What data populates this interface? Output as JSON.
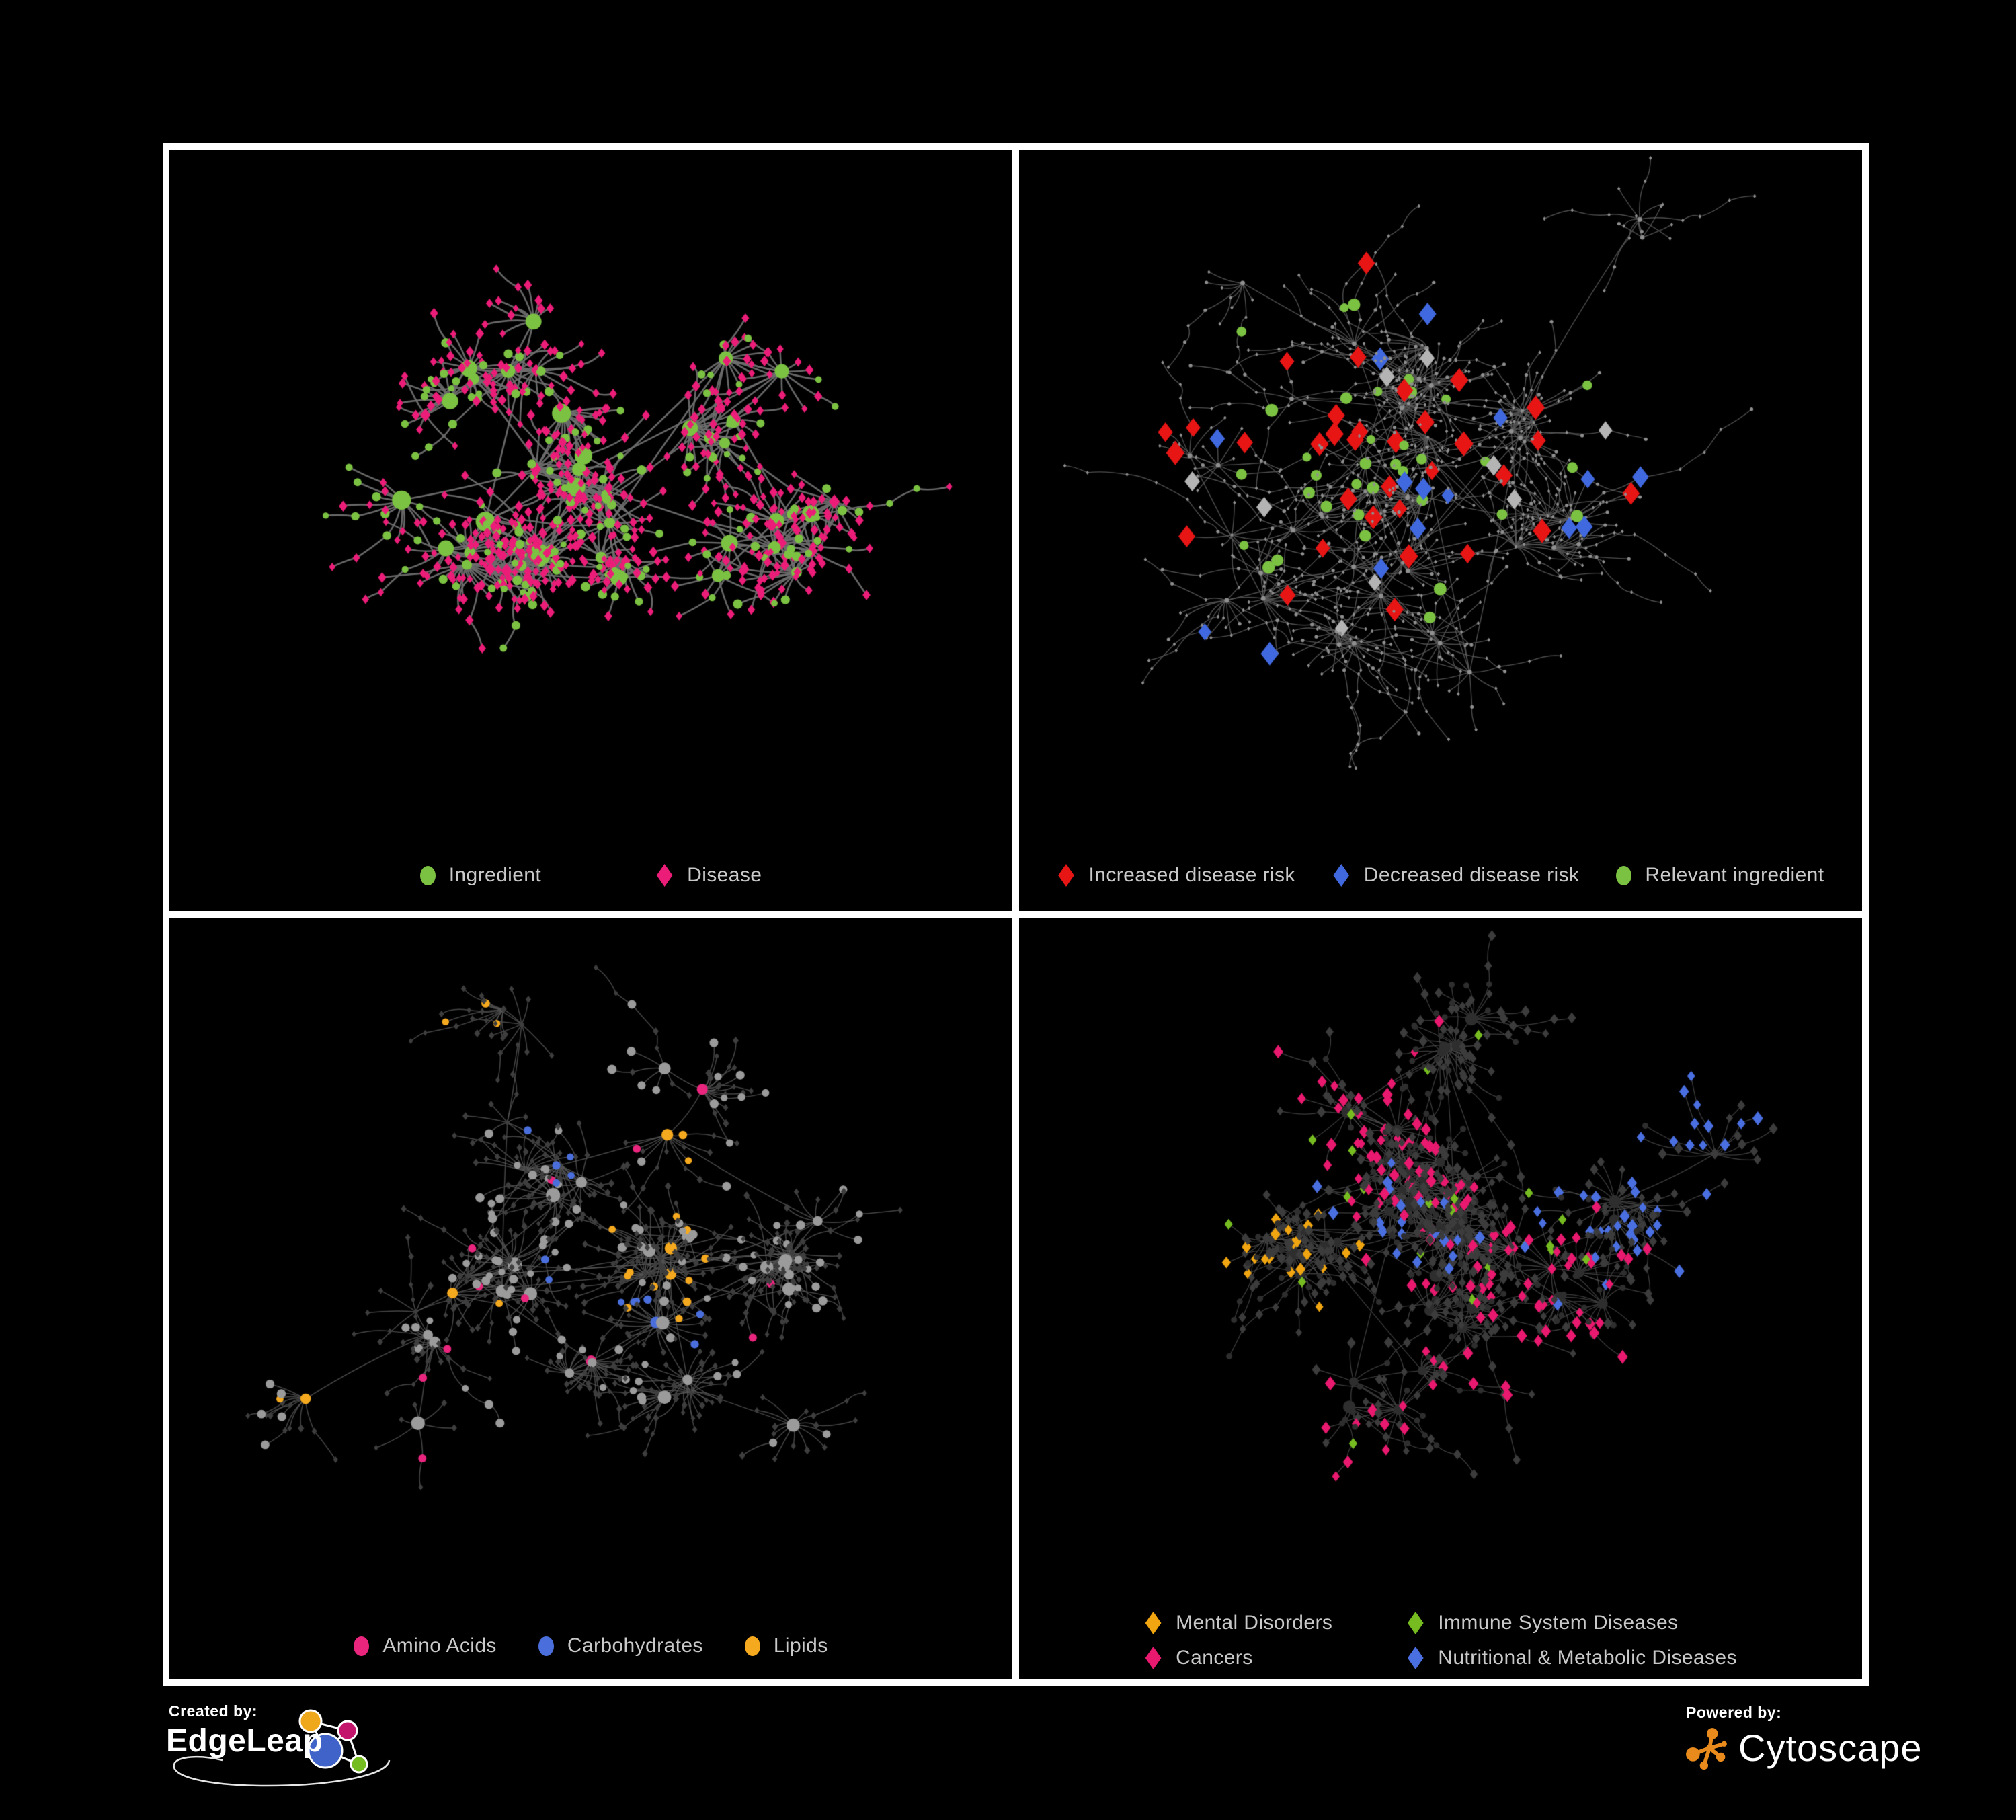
{
  "figure": {
    "background": "#000000",
    "panel_background": "#000000",
    "border_color": "#ffffff",
    "legend_text_color": "#c9c9c9"
  },
  "panels": [
    {
      "id": "ingredients-diseases",
      "position": "top-left",
      "legend": [
        {
          "label": "Ingredient",
          "shape": "circle",
          "color": "#7cc242"
        },
        {
          "label": "Disease",
          "shape": "diamond",
          "color": "#eb1d78"
        }
      ],
      "network": {
        "seed": 11,
        "clusters": 24,
        "leaves_min": 5,
        "leaves_max": 20,
        "chain_p": 0.22,
        "edge_color": "#6e6e6e",
        "edge_width": 2.6,
        "edge_alpha": 0.95,
        "palette": {
          "ingredient": "#7cc242",
          "disease": "#eb1d78"
        }
      }
    },
    {
      "id": "disease-risk",
      "position": "top-right",
      "legend": [
        {
          "label": "Increased disease risk",
          "shape": "diamond",
          "color": "#e81515"
        },
        {
          "label": "Decreased disease risk",
          "shape": "diamond",
          "color": "#4169df"
        },
        {
          "label": "Relevant ingredient",
          "shape": "circle",
          "color": "#7cc242"
        }
      ],
      "network": {
        "seed": 42,
        "clusters": 26,
        "leaves_min": 4,
        "leaves_max": 17,
        "chain_p": 0.5,
        "edge_color": "#5c5c5c",
        "edge_width": 1.4,
        "edge_alpha": 0.85,
        "palette": {
          "increased": "#e81515",
          "decreased": "#4169df",
          "neutral": "#b4b4b4",
          "ingredient": "#7cc242",
          "base": "#8f8f8f"
        }
      }
    },
    {
      "id": "ingredient-classes",
      "position": "bottom-left",
      "legend": [
        {
          "label": "Amino Acids",
          "shape": "circle",
          "color": "#e9257e"
        },
        {
          "label": "Carbohydrates",
          "shape": "circle",
          "color": "#4a6fdc"
        },
        {
          "label": "Lipids",
          "shape": "circle",
          "color": "#f5a91e"
        }
      ],
      "network": {
        "seed": 7,
        "clusters": 24,
        "leaves_min": 5,
        "leaves_max": 19,
        "chain_p": 0.3,
        "edge_color": "#585858",
        "edge_width": 1.5,
        "edge_alpha": 0.8,
        "palette": {
          "amino": "#e9257e",
          "carbs": "#4a6fdc",
          "lipids": "#f5a91e",
          "base": "#9b9b9b",
          "disease": "#3e3e3e"
        }
      }
    },
    {
      "id": "disease-categories",
      "position": "bottom-right",
      "legend": [
        {
          "label": "Mental Disorders",
          "shape": "diamond",
          "color": "#f0a511"
        },
        {
          "label": "Immune System Diseases",
          "shape": "diamond",
          "color": "#76bc21"
        },
        {
          "label": "Cancers",
          "shape": "diamond",
          "color": "#e8196e"
        },
        {
          "label": "Nutritional & Metabolic Diseases",
          "shape": "diamond",
          "color": "#4a6fe0"
        }
      ],
      "network": {
        "seed": 99,
        "clusters": 26,
        "leaves_min": 5,
        "leaves_max": 19,
        "chain_p": 0.35,
        "edge_color": "#4c4c4c",
        "edge_width": 1.3,
        "edge_alpha": 0.8,
        "palette": {
          "mental": "#f0a511",
          "immune": "#76bc21",
          "cancer": "#e8196e",
          "metabolic": "#4a6fe0",
          "base_diamond": "#3c3c3c",
          "base_circle": "#2e2e2e"
        }
      }
    }
  ],
  "footer": {
    "created_by": {
      "label": "Created by:",
      "brand": "EdgeLeap",
      "logo_colors": {
        "yellow": "#efa71c",
        "magenta": "#c2156b",
        "blue": "#3f63c8",
        "green": "#74bc1f"
      }
    },
    "powered_by": {
      "label": "Powered by:",
      "brand": "Cytoscape",
      "accent_color": "#e98a1c"
    }
  }
}
